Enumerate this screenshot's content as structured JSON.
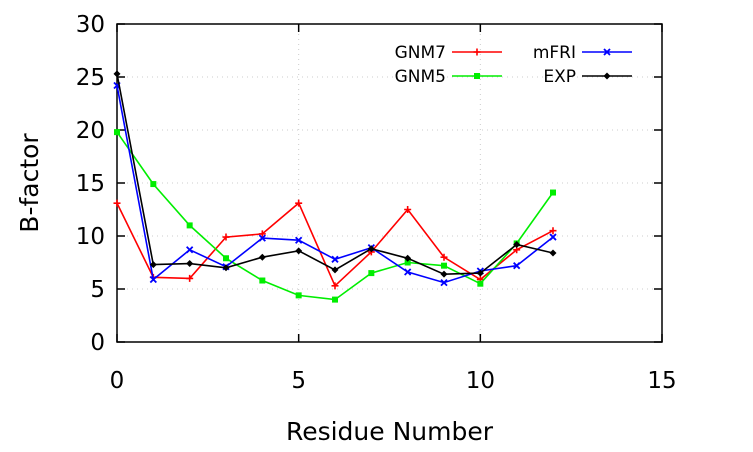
{
  "chart_data": {
    "type": "line",
    "title": "",
    "xlabel": "Residue Number",
    "ylabel": "B-factor",
    "xlim": [
      0,
      15
    ],
    "ylim": [
      0,
      30
    ],
    "xticks": [
      0,
      5,
      10,
      15
    ],
    "yticks": [
      0,
      5,
      10,
      15,
      20,
      25,
      30
    ],
    "grid": true,
    "legend_position": "top-right",
    "x": [
      0,
      1,
      2,
      3,
      4,
      5,
      6,
      7,
      8,
      9,
      10,
      11,
      12
    ],
    "series": [
      {
        "name": "GNM7",
        "color": "#ff0000",
        "marker": "plus",
        "values": [
          13.1,
          6.1,
          6.0,
          9.9,
          10.2,
          13.1,
          5.3,
          8.5,
          12.5,
          8.0,
          5.9,
          8.7,
          10.5
        ]
      },
      {
        "name": "GNM5",
        "color": "#00ee00",
        "marker": "square",
        "values": [
          19.8,
          14.9,
          11.0,
          7.9,
          5.8,
          4.4,
          4.0,
          6.5,
          7.5,
          7.2,
          5.5,
          9.3,
          14.1
        ]
      },
      {
        "name": "mFRI",
        "color": "#0000ff",
        "marker": "cross",
        "values": [
          24.2,
          5.9,
          8.7,
          7.1,
          9.8,
          9.6,
          7.8,
          8.9,
          6.6,
          5.6,
          6.7,
          7.2,
          9.9
        ]
      },
      {
        "name": "EXP",
        "color": "#000000",
        "marker": "diamond",
        "values": [
          25.3,
          7.3,
          7.4,
          7.0,
          8.0,
          8.6,
          6.8,
          8.8,
          7.9,
          6.4,
          6.5,
          9.2,
          8.4
        ]
      }
    ]
  }
}
